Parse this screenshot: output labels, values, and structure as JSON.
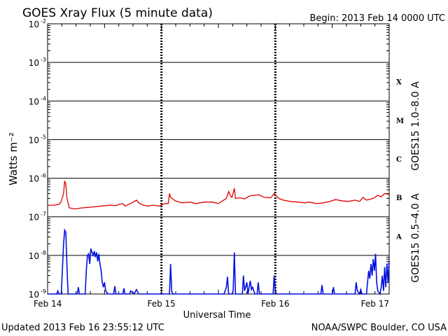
{
  "title": "GOES Xray Flux (5 minute data)",
  "begin": "Begin:  2013 Feb 14 0000 UTC",
  "updated": "Updated 2013 Feb 16 23:55:12 UTC",
  "credit": "NOAA/SWPC Boulder, CO USA",
  "chart_data": {
    "type": "line",
    "title": "GOES Xray Flux (5 minute data)",
    "xlabel": "Universal Time",
    "ylabel": "Watts m⁻²",
    "yscale": "log",
    "ylim": [
      1e-09,
      0.01
    ],
    "xlim": [
      0,
      3
    ],
    "x_unit": "days since 2013 Feb 14 0000 UTC",
    "x_ticks": [
      {
        "value": 0,
        "label": "Feb 14"
      },
      {
        "value": 1,
        "label": "Feb 15"
      },
      {
        "value": 2,
        "label": "Feb 16"
      },
      {
        "value": 3,
        "label": "Feb 17"
      }
    ],
    "y_ticks": [
      {
        "value": 1e-09,
        "base": "10",
        "exp": "-9"
      },
      {
        "value": 1e-08,
        "base": "10",
        "exp": "-8"
      },
      {
        "value": 1e-07,
        "base": "10",
        "exp": "-7"
      },
      {
        "value": 1e-06,
        "base": "10",
        "exp": "-6"
      },
      {
        "value": 1e-05,
        "base": "10",
        "exp": "-5"
      },
      {
        "value": 0.0001,
        "base": "10",
        "exp": "-4"
      },
      {
        "value": 0.001,
        "base": "10",
        "exp": "-3"
      },
      {
        "value": 0.01,
        "base": "10",
        "exp": "-2"
      }
    ],
    "flare_classes": [
      {
        "label": "X",
        "value": 0.000316
      },
      {
        "label": "M",
        "value": 3.16e-05
      },
      {
        "label": "C",
        "value": 3.16e-06
      },
      {
        "label": "B",
        "value": 3.16e-07
      },
      {
        "label": "A",
        "value": 3.16e-08
      }
    ],
    "grid": "horizontal lines at each decade; dashed vertical day markers",
    "series": [
      {
        "name": "GOES15 1.0–8.0 A",
        "color": "#e00000",
        "points": [
          [
            0.0,
            2e-07
          ],
          [
            0.06,
            2e-07
          ],
          [
            0.1,
            2.1e-07
          ],
          [
            0.12,
            2.5e-07
          ],
          [
            0.14,
            4e-07
          ],
          [
            0.15,
            8.5e-07
          ],
          [
            0.16,
            7e-07
          ],
          [
            0.17,
            3e-07
          ],
          [
            0.19,
            1.7e-07
          ],
          [
            0.24,
            1.6e-07
          ],
          [
            0.3,
            1.7e-07
          ],
          [
            0.4,
            1.8e-07
          ],
          [
            0.48,
            1.9e-07
          ],
          [
            0.55,
            2e-07
          ],
          [
            0.6,
            1.95e-07
          ],
          [
            0.63,
            2.1e-07
          ],
          [
            0.66,
            2.2e-07
          ],
          [
            0.68,
            1.9e-07
          ],
          [
            0.74,
            2.3e-07
          ],
          [
            0.78,
            2.7e-07
          ],
          [
            0.8,
            2.3e-07
          ],
          [
            0.84,
            2e-07
          ],
          [
            0.88,
            1.9e-07
          ],
          [
            0.93,
            2e-07
          ],
          [
            0.98,
            1.9e-07
          ],
          [
            1.03,
            2.2e-07
          ],
          [
            1.06,
            2.2e-07
          ],
          [
            1.07,
            4e-07
          ],
          [
            1.08,
            3.2e-07
          ],
          [
            1.12,
            2.6e-07
          ],
          [
            1.18,
            2.3e-07
          ],
          [
            1.25,
            2.4e-07
          ],
          [
            1.3,
            2.2e-07
          ],
          [
            1.38,
            2.4e-07
          ],
          [
            1.45,
            2.4e-07
          ],
          [
            1.5,
            2.2e-07
          ],
          [
            1.57,
            3e-07
          ],
          [
            1.59,
            4.5e-07
          ],
          [
            1.61,
            3.3e-07
          ],
          [
            1.62,
            3.2e-07
          ],
          [
            1.64,
            5.5e-07
          ],
          [
            1.65,
            3e-07
          ],
          [
            1.69,
            3.1e-07
          ],
          [
            1.73,
            2.9e-07
          ],
          [
            1.77,
            3.4e-07
          ],
          [
            1.8,
            3.6e-07
          ],
          [
            1.86,
            3.7e-07
          ],
          [
            1.9,
            3.2e-07
          ],
          [
            1.96,
            3.1e-07
          ],
          [
            1.99,
            4e-07
          ],
          [
            2.03,
            3e-07
          ],
          [
            2.07,
            2.7e-07
          ],
          [
            2.13,
            2.5e-07
          ],
          [
            2.2,
            2.4e-07
          ],
          [
            2.26,
            2.3e-07
          ],
          [
            2.3,
            2.4e-07
          ],
          [
            2.36,
            2.2e-07
          ],
          [
            2.42,
            2.3e-07
          ],
          [
            2.48,
            2.5e-07
          ],
          [
            2.53,
            2.8e-07
          ],
          [
            2.58,
            2.6e-07
          ],
          [
            2.64,
            2.5e-07
          ],
          [
            2.7,
            2.7e-07
          ],
          [
            2.74,
            2.5e-07
          ],
          [
            2.77,
            3.2e-07
          ],
          [
            2.8,
            2.7e-07
          ],
          [
            2.86,
            3e-07
          ],
          [
            2.9,
            3.6e-07
          ],
          [
            2.93,
            3.3e-07
          ],
          [
            2.96,
            4e-07
          ],
          [
            3.0,
            3.8e-07
          ]
        ]
      },
      {
        "name": "GOES15 0.5–4.0 A",
        "color": "#0010e0",
        "points": [
          [
            0.0,
            1e-09
          ],
          [
            0.08,
            1e-09
          ],
          [
            0.09,
            1.2e-09
          ],
          [
            0.1,
            1e-09
          ],
          [
            0.12,
            1e-09
          ],
          [
            0.13,
            4e-09
          ],
          [
            0.14,
            2e-08
          ],
          [
            0.15,
            4.5e-08
          ],
          [
            0.16,
            4e-08
          ],
          [
            0.17,
            5e-09
          ],
          [
            0.18,
            1e-09
          ],
          [
            0.26,
            1e-09
          ],
          [
            0.27,
            1.5e-09
          ],
          [
            0.28,
            1e-09
          ],
          [
            0.33,
            1e-09
          ],
          [
            0.34,
            4e-09
          ],
          [
            0.35,
            1e-08
          ],
          [
            0.36,
            1.1e-08
          ],
          [
            0.37,
            6e-09
          ],
          [
            0.38,
            1.5e-08
          ],
          [
            0.39,
            1.2e-08
          ],
          [
            0.4,
            1e-08
          ],
          [
            0.41,
            1.3e-08
          ],
          [
            0.42,
            9e-09
          ],
          [
            0.43,
            1.2e-08
          ],
          [
            0.44,
            7e-09
          ],
          [
            0.45,
            1.1e-08
          ],
          [
            0.46,
            6e-09
          ],
          [
            0.47,
            4e-09
          ],
          [
            0.48,
            2e-09
          ],
          [
            0.49,
            1.5e-09
          ],
          [
            0.5,
            2e-09
          ],
          [
            0.51,
            1.2e-09
          ],
          [
            0.53,
            1e-09
          ],
          [
            0.58,
            1e-09
          ],
          [
            0.59,
            1.6e-09
          ],
          [
            0.6,
            1e-09
          ],
          [
            0.66,
            1e-09
          ],
          [
            0.67,
            1.4e-09
          ],
          [
            0.68,
            1e-09
          ],
          [
            0.72,
            1e-09
          ],
          [
            0.73,
            1.2e-09
          ],
          [
            0.76,
            1e-09
          ],
          [
            0.78,
            1.3e-09
          ],
          [
            0.8,
            1e-09
          ],
          [
            0.9,
            1e-09
          ],
          [
            1.07,
            1e-09
          ],
          [
            1.08,
            6e-09
          ],
          [
            1.09,
            1.2e-09
          ],
          [
            1.1,
            1e-09
          ],
          [
            1.55,
            1e-09
          ],
          [
            1.57,
            1.5e-09
          ],
          [
            1.58,
            2.8e-09
          ],
          [
            1.59,
            1e-09
          ],
          [
            1.62,
            1e-09
          ],
          [
            1.63,
            1.2e-09
          ],
          [
            1.64,
            1.2e-08
          ],
          [
            1.65,
            1e-09
          ],
          [
            1.71,
            1e-09
          ],
          [
            1.72,
            3e-09
          ],
          [
            1.73,
            1.2e-09
          ],
          [
            1.75,
            2e-09
          ],
          [
            1.76,
            1e-09
          ],
          [
            1.78,
            2.2e-09
          ],
          [
            1.79,
            1.3e-09
          ],
          [
            1.8,
            1.5e-09
          ],
          [
            1.82,
            1e-09
          ],
          [
            1.84,
            1e-09
          ],
          [
            1.85,
            2e-09
          ],
          [
            1.86,
            1e-09
          ],
          [
            1.98,
            1e-09
          ],
          [
            1.99,
            3e-09
          ],
          [
            2.0,
            1.2e-09
          ],
          [
            2.01,
            1e-09
          ],
          [
            2.4,
            1e-09
          ],
          [
            2.41,
            1.7e-09
          ],
          [
            2.42,
            1e-09
          ],
          [
            2.5,
            1e-09
          ],
          [
            2.51,
            1.5e-09
          ],
          [
            2.52,
            1e-09
          ],
          [
            2.7,
            1e-09
          ],
          [
            2.71,
            2e-09
          ],
          [
            2.72,
            1.2e-09
          ],
          [
            2.74,
            1e-09
          ],
          [
            2.75,
            1.3e-09
          ],
          [
            2.76,
            1e-09
          ],
          [
            2.8,
            1e-09
          ],
          [
            2.81,
            2e-09
          ],
          [
            2.82,
            4e-09
          ],
          [
            2.83,
            2.5e-09
          ],
          [
            2.84,
            6e-09
          ],
          [
            2.85,
            3e-09
          ],
          [
            2.86,
            8e-09
          ],
          [
            2.87,
            4e-09
          ],
          [
            2.88,
            1.1e-08
          ],
          [
            2.89,
            2e-09
          ],
          [
            2.9,
            1.2e-09
          ],
          [
            2.92,
            1e-09
          ],
          [
            2.93,
            1.5e-09
          ],
          [
            2.94,
            3e-09
          ],
          [
            2.95,
            1.2e-09
          ],
          [
            2.96,
            5e-09
          ],
          [
            2.97,
            1.5e-09
          ],
          [
            2.98,
            6e-09
          ],
          [
            2.99,
            2e-09
          ],
          [
            3.0,
            7e-09
          ]
        ]
      }
    ]
  }
}
